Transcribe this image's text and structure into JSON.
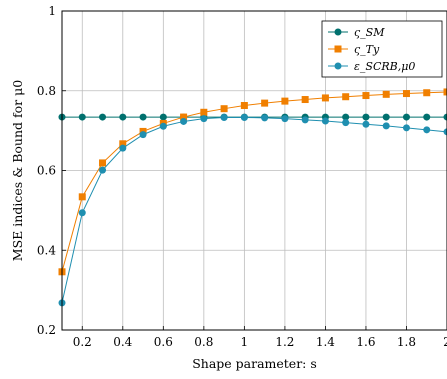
{
  "chart_data": {
    "type": "line",
    "xlabel": "Shape parameter: s",
    "ylabel": "MSE indices & Bound for μ0",
    "xlim": [
      0.1,
      2.0
    ],
    "ylim": [
      0.2,
      1.0
    ],
    "xticks": [
      0.2,
      0.4,
      0.6,
      0.8,
      1.0,
      1.2,
      1.4,
      1.6,
      1.8,
      2.0
    ],
    "xtick_labels": [
      "0.2",
      "0.4",
      "0.6",
      "0.8",
      "1",
      "1.2",
      "1.4",
      "1.6",
      "1.8",
      "2"
    ],
    "yticks": [
      0.2,
      0.4,
      0.6,
      0.8,
      1.0
    ],
    "ytick_labels": [
      "0.2",
      "0.4",
      "0.6",
      "0.8",
      "1"
    ],
    "grid": true,
    "legend_position": "top-right",
    "x": [
      0.1,
      0.2,
      0.3,
      0.4,
      0.5,
      0.6,
      0.7,
      0.8,
      0.9,
      1.0,
      1.1,
      1.2,
      1.3,
      1.4,
      1.5,
      1.6,
      1.7,
      1.8,
      1.9,
      2.0
    ],
    "series": [
      {
        "name": "ς_SM",
        "color": "#00706e",
        "marker": "circle",
        "values": [
          0.734,
          0.734,
          0.734,
          0.734,
          0.734,
          0.734,
          0.734,
          0.734,
          0.734,
          0.734,
          0.734,
          0.734,
          0.734,
          0.734,
          0.734,
          0.734,
          0.734,
          0.734,
          0.734,
          0.734
        ]
      },
      {
        "name": "ς_Ty",
        "color": "#f07f00",
        "marker": "square",
        "values": [
          0.346,
          0.534,
          0.619,
          0.667,
          0.698,
          0.718,
          0.734,
          0.746,
          0.755,
          0.763,
          0.769,
          0.774,
          0.778,
          0.782,
          0.785,
          0.788,
          0.791,
          0.793,
          0.795,
          0.797
        ]
      },
      {
        "name": "ε_SCRB,μ0",
        "color": "#1f8fb0",
        "marker": "circle",
        "values": [
          0.268,
          0.494,
          0.601,
          0.656,
          0.69,
          0.711,
          0.723,
          0.73,
          0.733,
          0.733,
          0.732,
          0.73,
          0.727,
          0.724,
          0.72,
          0.716,
          0.712,
          0.707,
          0.702,
          0.697
        ]
      }
    ]
  }
}
